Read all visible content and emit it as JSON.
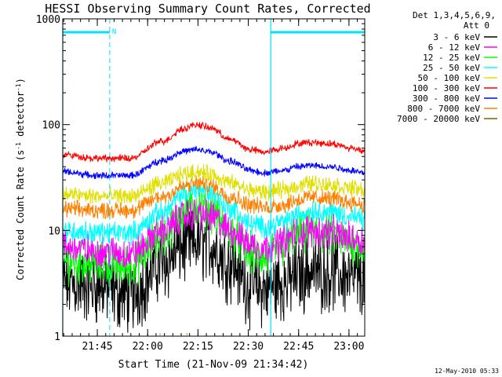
{
  "chart_data": {
    "type": "line",
    "title": "HESSI Observing Summary Count Rates, Corrected",
    "xlabel": "Start Time (21-Nov-09 21:34:42)",
    "ylabel_main": "Corrected Count Rate (s",
    "ylabel_sup": "-1",
    "ylabel_mid": " detector",
    "ylabel_close": ")",
    "ylabel_full": "Corrected Count Rate (s-1 detector-1)",
    "x_unit": "minutes after 21:34:42 UT",
    "xlim": [
      0,
      90
    ],
    "yscale": "log",
    "ylim": [
      1,
      1000
    ],
    "x_ticks": [
      {
        "x": 10.3,
        "label": "21:45"
      },
      {
        "x": 25.3,
        "label": "22:00"
      },
      {
        "x": 40.3,
        "label": "22:15"
      },
      {
        "x": 55.3,
        "label": "22:30"
      },
      {
        "x": 70.3,
        "label": "22:45"
      },
      {
        "x": 85.3,
        "label": "23:00"
      }
    ],
    "y_ticks": [
      {
        "y": 1,
        "label": "1"
      },
      {
        "y": 10,
        "label": "10"
      },
      {
        "y": 100,
        "label": "100"
      },
      {
        "y": 1000,
        "label": "1000"
      }
    ],
    "legend": {
      "placement": "right",
      "header_line1": "Det 1,3,4,5,6,9,",
      "header_line2": "Att 0"
    },
    "series": [
      {
        "name": "3 - 6 keV",
        "color": "#000000",
        "x": [
          0,
          10,
          20,
          30,
          36,
          40,
          44,
          50,
          56,
          60,
          66,
          70,
          74,
          80,
          86,
          90
        ],
        "y": [
          3.2,
          3.0,
          2.5,
          5.0,
          7.2,
          7.8,
          7.2,
          5.0,
          3.0,
          2.8,
          3.2,
          3.8,
          4.2,
          4.0,
          3.6,
          3.4
        ],
        "noise": 0.28
      },
      {
        "name": "6 - 12 keV",
        "color": "#ff00ff",
        "x": [
          0,
          10,
          20,
          30,
          36,
          40,
          44,
          50,
          56,
          60,
          66,
          70,
          74,
          80,
          86,
          90
        ],
        "y": [
          7.0,
          6.4,
          6.0,
          10.0,
          13.5,
          14.5,
          13.5,
          10.0,
          7.5,
          7.0,
          8.0,
          9.5,
          10.0,
          9.5,
          8.5,
          8.0
        ],
        "noise": 0.12
      },
      {
        "name": "12 - 25 keV",
        "color": "#00ff00",
        "x": [
          0,
          10,
          20,
          30,
          36,
          40,
          44,
          50,
          56,
          60,
          66,
          70,
          74,
          80,
          86,
          90
        ],
        "y": [
          5.0,
          4.8,
          4.6,
          9.0,
          15.0,
          17.0,
          15.5,
          9.5,
          6.0,
          5.4,
          7.0,
          9.0,
          9.8,
          9.0,
          7.5,
          6.8
        ],
        "noise": 0.15
      },
      {
        "name": "25 - 50 keV",
        "color": "#00ffff",
        "x": [
          0,
          10,
          20,
          30,
          36,
          40,
          44,
          50,
          56,
          60,
          66,
          70,
          74,
          80,
          86,
          90
        ],
        "y": [
          10.0,
          9.5,
          9.5,
          15.0,
          22.0,
          25.0,
          23.0,
          16.0,
          11.5,
          10.8,
          12.0,
          14.0,
          15.5,
          15.0,
          13.5,
          12.5
        ],
        "noise": 0.08
      },
      {
        "name": "50 - 100 keV",
        "color": "#e0e000",
        "x": [
          0,
          10,
          20,
          30,
          36,
          40,
          44,
          50,
          56,
          60,
          66,
          70,
          74,
          80,
          86,
          90
        ],
        "y": [
          22.0,
          21.0,
          21.0,
          28.0,
          34.0,
          36.0,
          34.0,
          28.0,
          24.0,
          23.0,
          24.0,
          26.5,
          28.0,
          27.0,
          25.0,
          24.0
        ],
        "noise": 0.06
      },
      {
        "name": "100 - 300 keV",
        "color": "#ff0000",
        "x": [
          0,
          10,
          20,
          30,
          36,
          40,
          44,
          50,
          56,
          60,
          66,
          70,
          74,
          80,
          86,
          90
        ],
        "y": [
          52.0,
          48.0,
          48.0,
          70.0,
          92.0,
          100.0,
          93.0,
          72.0,
          58.0,
          55.0,
          60.0,
          66.0,
          68.0,
          66.0,
          60.0,
          57.0
        ],
        "noise": 0.025
      },
      {
        "name": "300 - 800 keV",
        "color": "#0000ff",
        "x": [
          0,
          10,
          20,
          30,
          36,
          40,
          44,
          50,
          56,
          60,
          66,
          70,
          74,
          80,
          86,
          90
        ],
        "y": [
          36.0,
          33.0,
          33.0,
          46.0,
          56.0,
          58.0,
          55.0,
          45.0,
          37.0,
          35.0,
          37.0,
          40.0,
          41.0,
          40.0,
          37.0,
          35.0
        ],
        "noise": 0.025
      },
      {
        "name": "800 - 7000 keV",
        "color": "#ff8000",
        "x": [
          0,
          10,
          20,
          30,
          36,
          40,
          44,
          50,
          56,
          60,
          66,
          70,
          74,
          80,
          86,
          90
        ],
        "y": [
          16.0,
          15.5,
          15.5,
          21.0,
          26.0,
          28.0,
          26.5,
          21.0,
          17.5,
          16.5,
          17.5,
          19.5,
          20.5,
          20.0,
          18.5,
          17.5
        ],
        "noise": 0.06
      },
      {
        "name": "7000 - 20000 keV",
        "color": "#8b5a00",
        "x": [],
        "y": [],
        "noise": 0
      }
    ],
    "annotations": {
      "attenuator_text": "N",
      "bar_color": "#00e0ff",
      "bars": [
        {
          "x_start": 0,
          "x_end": 14
        },
        {
          "x_start": 62,
          "x_end": 90
        }
      ],
      "night_boundaries_solid": [
        0,
        62
      ],
      "night_boundaries_dashed": [
        14,
        90
      ],
      "orange_marker_x": [
        29,
        37
      ]
    },
    "footer_timestamp": "12-May-2010 05:33"
  }
}
